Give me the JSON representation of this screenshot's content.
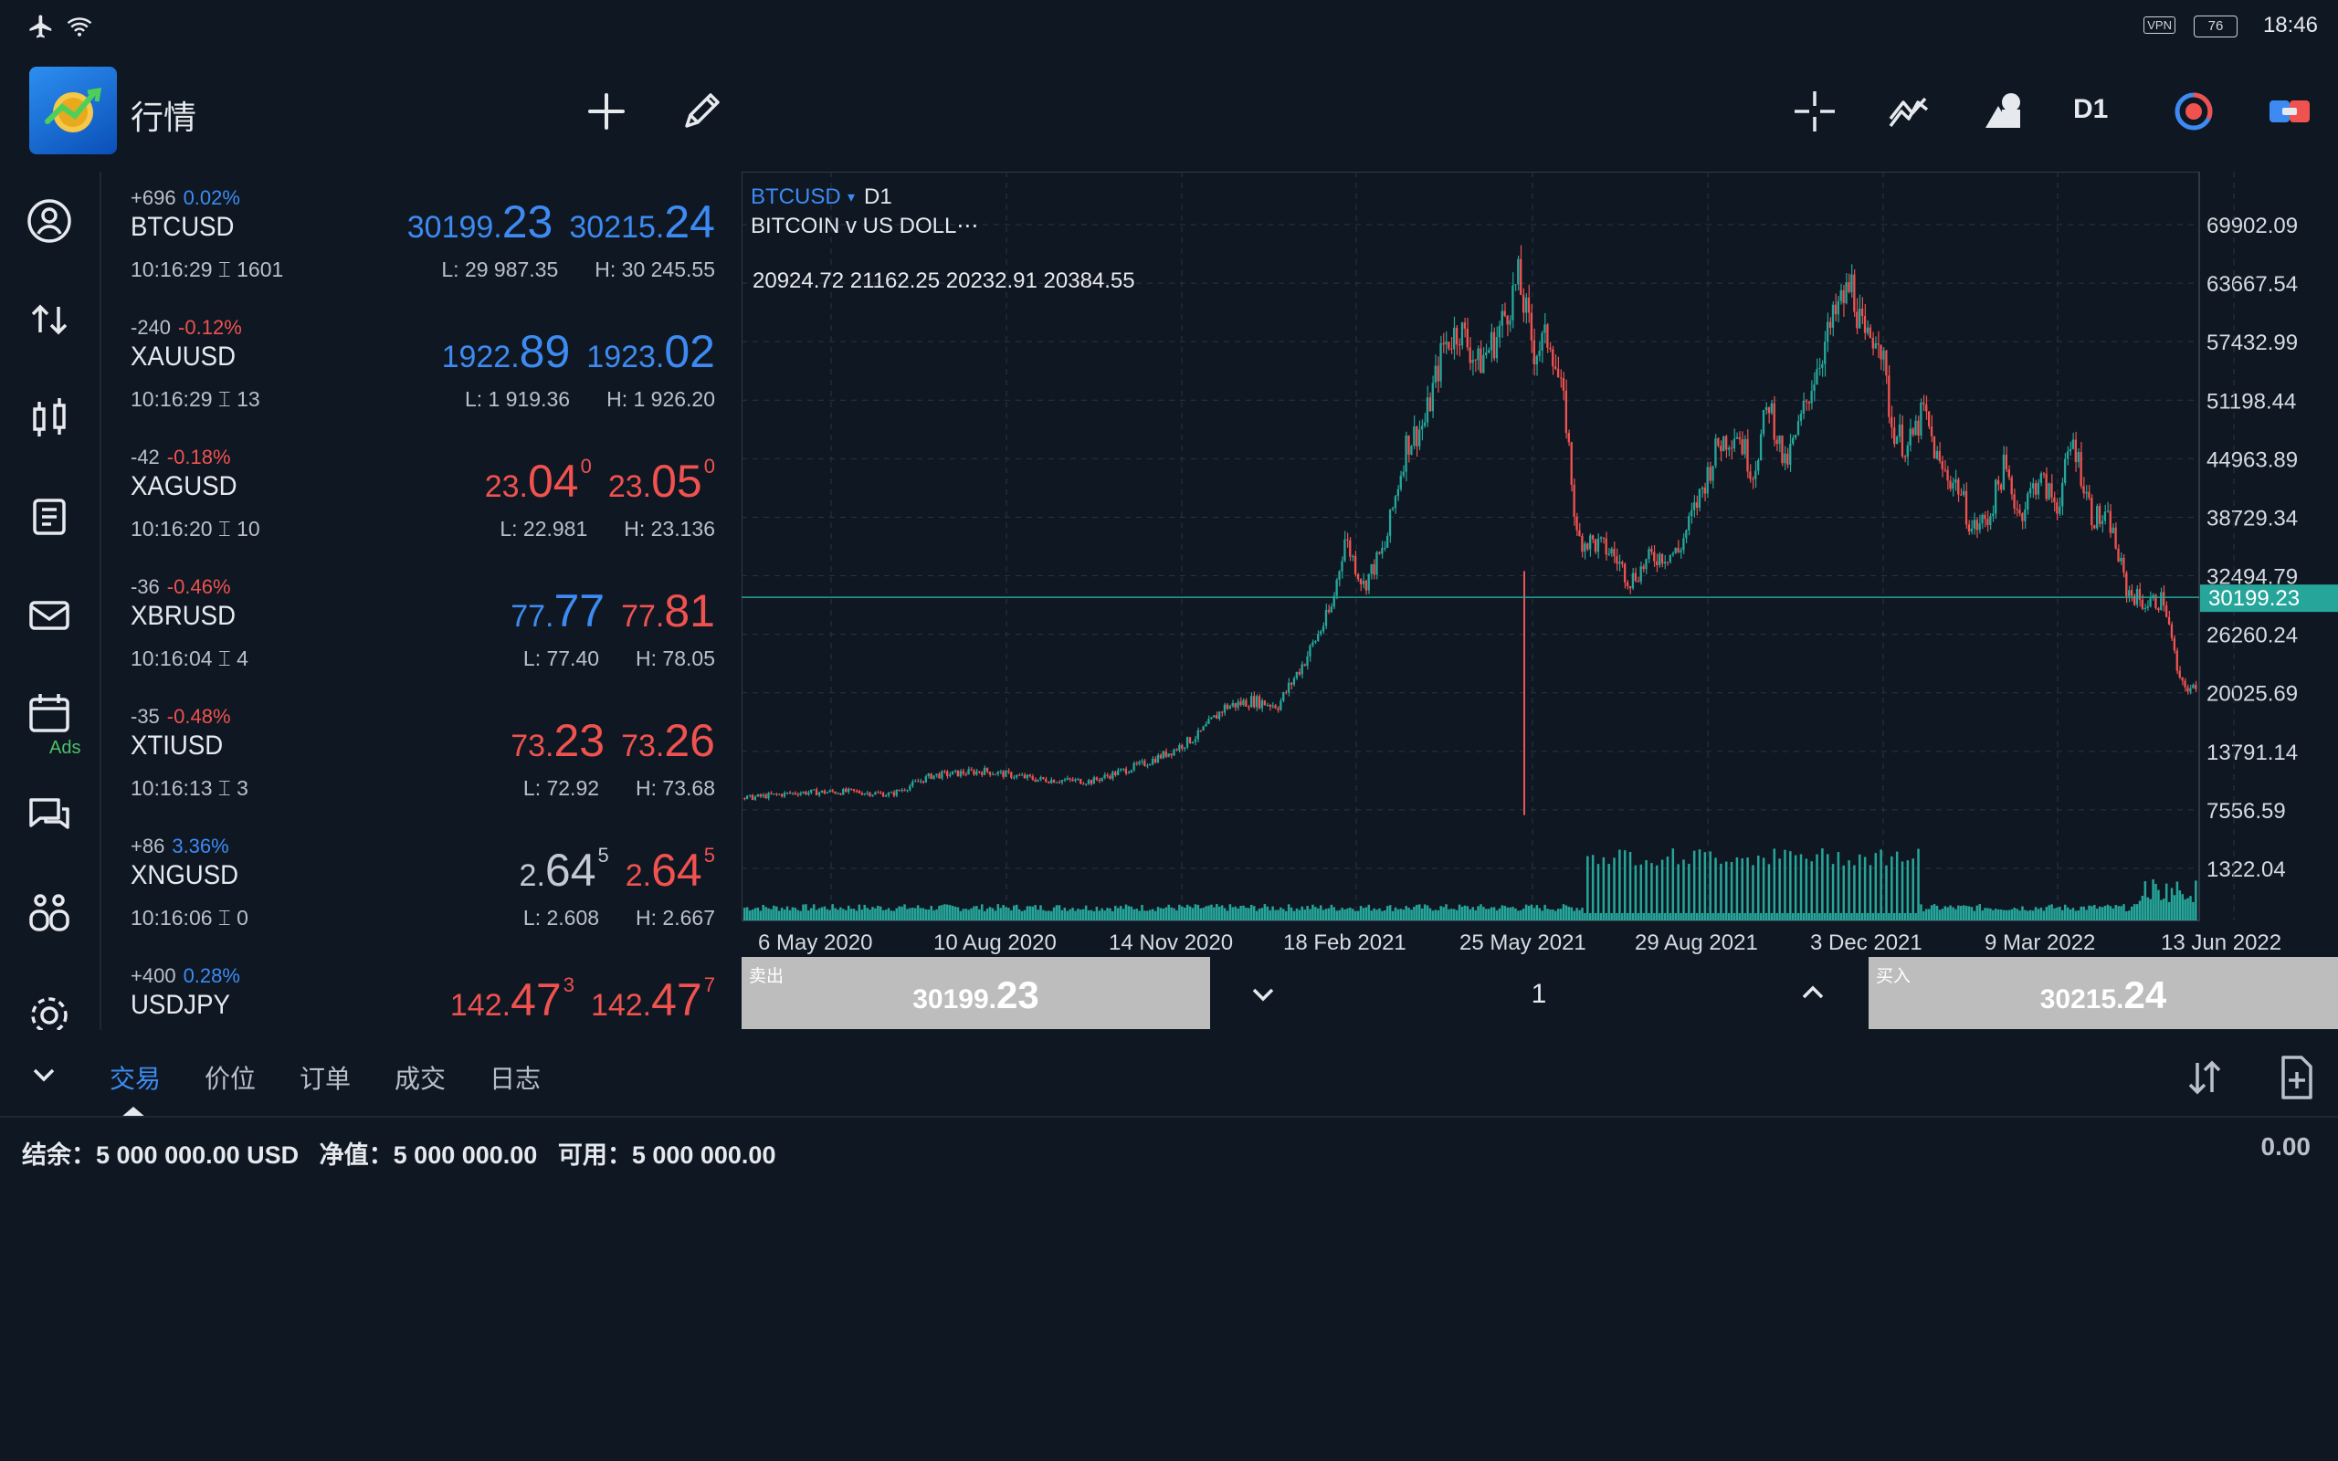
{
  "status_bar": {
    "time": "18:46",
    "battery": "76",
    "vpn": "VPN"
  },
  "header": {
    "title": "行情",
    "timeframe": "D1"
  },
  "sidebar": {
    "ads_label": "Ads"
  },
  "quotes": [
    {
      "change": "+696",
      "percent": "0.02%",
      "trend": "up",
      "symbol": "BTCUSD",
      "time": "10:16:29",
      "spread": "1601",
      "bid_small": "30199.",
      "bid_large": "23",
      "bid_sup": "",
      "ask_small": "30215.",
      "ask_large": "24",
      "ask_sup": "",
      "bid_color": "up",
      "ask_color": "up",
      "low": "L: 29 987.35",
      "high": "H: 30 245.55"
    },
    {
      "change": "-240",
      "percent": "-0.12%",
      "trend": "down",
      "symbol": "XAUUSD",
      "time": "10:16:29",
      "spread": "13",
      "bid_small": "1922.",
      "bid_large": "89",
      "bid_sup": "",
      "ask_small": "1923.",
      "ask_large": "02",
      "ask_sup": "",
      "bid_color": "up",
      "ask_color": "up",
      "low": "L: 1 919.36",
      "high": "H: 1 926.20"
    },
    {
      "change": "-42",
      "percent": "-0.18%",
      "trend": "down",
      "symbol": "XAGUSD",
      "time": "10:16:20",
      "spread": "10",
      "bid_small": "23.",
      "bid_large": "04",
      "bid_sup": "0",
      "ask_small": "23.",
      "ask_large": "05",
      "ask_sup": "0",
      "bid_color": "down",
      "ask_color": "down",
      "low": "L: 22.981",
      "high": "H: 23.136"
    },
    {
      "change": "-36",
      "percent": "-0.46%",
      "trend": "down",
      "symbol": "XBRUSD",
      "time": "10:16:04",
      "spread": "4",
      "bid_small": "77.",
      "bid_large": "77",
      "bid_sup": "",
      "ask_small": "77.",
      "ask_large": "81",
      "ask_sup": "",
      "bid_color": "up",
      "ask_color": "down",
      "low": "L: 77.40",
      "high": "H: 78.05"
    },
    {
      "change": "-35",
      "percent": "-0.48%",
      "trend": "down",
      "symbol": "XTIUSD",
      "time": "10:16:13",
      "spread": "3",
      "bid_small": "73.",
      "bid_large": "23",
      "bid_sup": "",
      "ask_small": "73.",
      "ask_large": "26",
      "ask_sup": "",
      "bid_color": "down",
      "ask_color": "down",
      "low": "L: 72.92",
      "high": "H: 73.68"
    },
    {
      "change": "+86",
      "percent": "3.36%",
      "trend": "up",
      "symbol": "XNGUSD",
      "time": "10:16:06",
      "spread": "0",
      "bid_small": "2.",
      "bid_large": "64",
      "bid_sup": "5",
      "ask_small": "2.",
      "ask_large": "64",
      "ask_sup": "5",
      "bid_color": "neutral",
      "ask_color": "down",
      "low": "L: 2.608",
      "high": "H: 2.667"
    },
    {
      "change": "+400",
      "percent": "0.28%",
      "trend": "up",
      "symbol": "USDJPY",
      "time": "",
      "spread": "",
      "bid_small": "142.",
      "bid_large": "47",
      "bid_sup": "3",
      "ask_small": "142.",
      "ask_large": "47",
      "ask_sup": "7",
      "bid_color": "down",
      "ask_color": "down",
      "low": "",
      "high": ""
    }
  ],
  "chart": {
    "symbol": "BTCUSD",
    "timeframe": "D1",
    "description": "BITCOIN v US DOLL⋯",
    "ohlc": "20924.72 21162.25 20232.91 20384.55",
    "current_price": "30199.23",
    "colors": {
      "bull": "#26a69a",
      "bear": "#ef5350",
      "volume": "#26a69a",
      "price_line": "#26a69a"
    }
  },
  "chart_data": {
    "type": "candlestick",
    "y_ticks": [
      "69902.09",
      "63667.54",
      "57432.99",
      "51198.44",
      "44963.89",
      "38729.34",
      "32494.79",
      "26260.24",
      "20025.69",
      "13791.14",
      "7556.59",
      "1322.04"
    ],
    "x_ticks": [
      "6 May 2020",
      "10 Aug 2020",
      "14 Nov 2020",
      "18 Feb 2021",
      "25 May 2021",
      "29 Aug 2021",
      "3 Dec 2021",
      "9 Mar 2022",
      "13 Jun 2022"
    ],
    "ylim": [
      1322.04,
      69902.09
    ],
    "current_price": 30199.23,
    "close_path": [
      [
        0,
        8800
      ],
      [
        20,
        9400
      ],
      [
        40,
        9500
      ],
      [
        55,
        9200
      ],
      [
        70,
        11200
      ],
      [
        90,
        11700
      ],
      [
        110,
        10800
      ],
      [
        130,
        10600
      ],
      [
        150,
        12500
      ],
      [
        160,
        13800
      ],
      [
        170,
        15500
      ],
      [
        180,
        18500
      ],
      [
        190,
        19200
      ],
      [
        200,
        18700
      ],
      [
        210,
        23500
      ],
      [
        220,
        29000
      ],
      [
        225,
        36500
      ],
      [
        232,
        31500
      ],
      [
        240,
        35500
      ],
      [
        248,
        46500
      ],
      [
        255,
        48800
      ],
      [
        262,
        57000
      ],
      [
        268,
        58900
      ],
      [
        275,
        55000
      ],
      [
        282,
        58000
      ],
      [
        290,
        64000
      ],
      [
        296,
        56500
      ],
      [
        302,
        58000
      ],
      [
        308,
        49000
      ],
      [
        312,
        36500
      ],
      [
        318,
        36000
      ],
      [
        325,
        35000
      ],
      [
        332,
        32000
      ],
      [
        340,
        34500
      ],
      [
        350,
        35000
      ],
      [
        358,
        41000
      ],
      [
        365,
        46500
      ],
      [
        372,
        48000
      ],
      [
        378,
        43500
      ],
      [
        384,
        51000
      ],
      [
        390,
        44000
      ],
      [
        395,
        48000
      ],
      [
        402,
        55000
      ],
      [
        410,
        61000
      ],
      [
        415,
        63500
      ],
      [
        420,
        57000
      ],
      [
        425,
        59000
      ],
      [
        430,
        48500
      ],
      [
        436,
        46000
      ],
      [
        442,
        50000
      ],
      [
        448,
        44000
      ],
      [
        455,
        42000
      ],
      [
        460,
        37500
      ],
      [
        466,
        38500
      ],
      [
        472,
        44000
      ],
      [
        478,
        39000
      ],
      [
        485,
        43000
      ],
      [
        492,
        40000
      ],
      [
        498,
        47000
      ],
      [
        505,
        39000
      ],
      [
        512,
        38000
      ],
      [
        518,
        31000
      ],
      [
        525,
        29500
      ],
      [
        532,
        30000
      ],
      [
        538,
        21000
      ],
      [
        545,
        20100
      ]
    ],
    "volume_note": "high volume zone from late May 2021 to Dec 2021"
  },
  "trade": {
    "sell_label": "卖出",
    "sell_small": "30199.",
    "sell_large": "23",
    "buy_label": "买入",
    "buy_small": "30215.",
    "buy_large": "24",
    "lot": "1"
  },
  "bottom_tabs": [
    "交易",
    "价位",
    "订单",
    "成交",
    "日志"
  ],
  "account": {
    "line": "结余：5 000 000.00 USD   净值：5 000 000.00   可用：5 000 000.00",
    "profit": "0.00"
  }
}
